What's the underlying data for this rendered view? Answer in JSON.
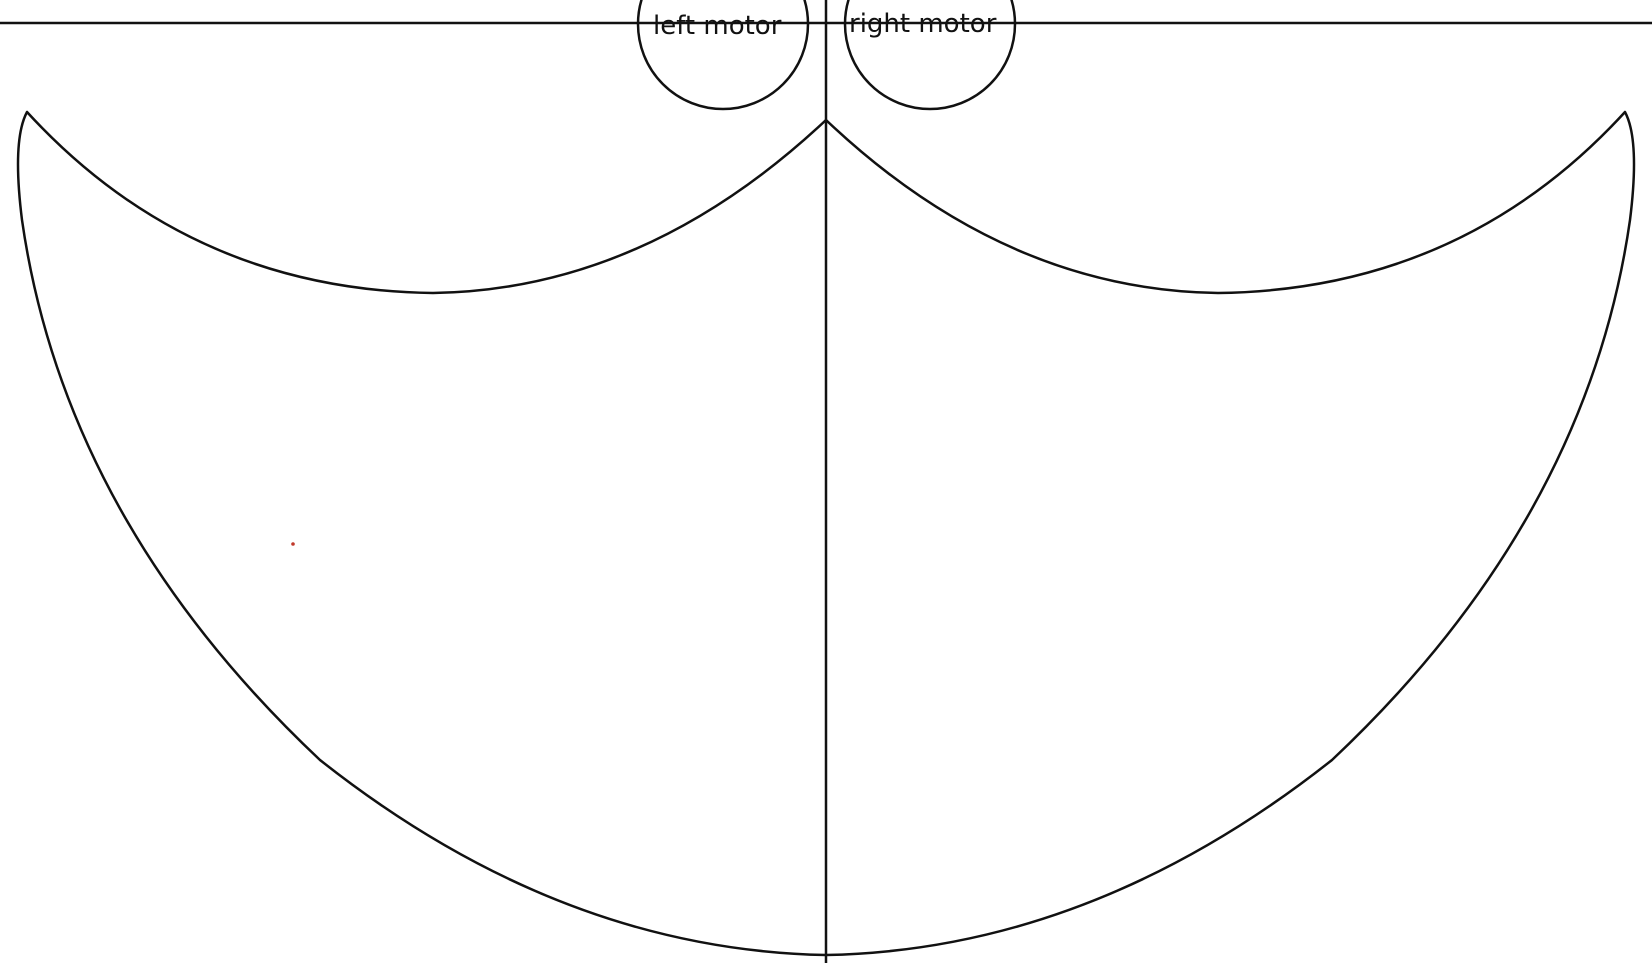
{
  "diagram": {
    "labels": {
      "left_motor": "left motor",
      "right_motor": "right motor"
    },
    "colors": {
      "line": "#111111",
      "text": "#111111",
      "dot": "#c0392b",
      "background": "#ffffff"
    },
    "elements": [
      "baseline",
      "center-axis",
      "left-motor-circle",
      "right-motor-circle",
      "left-work-area",
      "right-work-area",
      "pen-position-dot"
    ]
  }
}
